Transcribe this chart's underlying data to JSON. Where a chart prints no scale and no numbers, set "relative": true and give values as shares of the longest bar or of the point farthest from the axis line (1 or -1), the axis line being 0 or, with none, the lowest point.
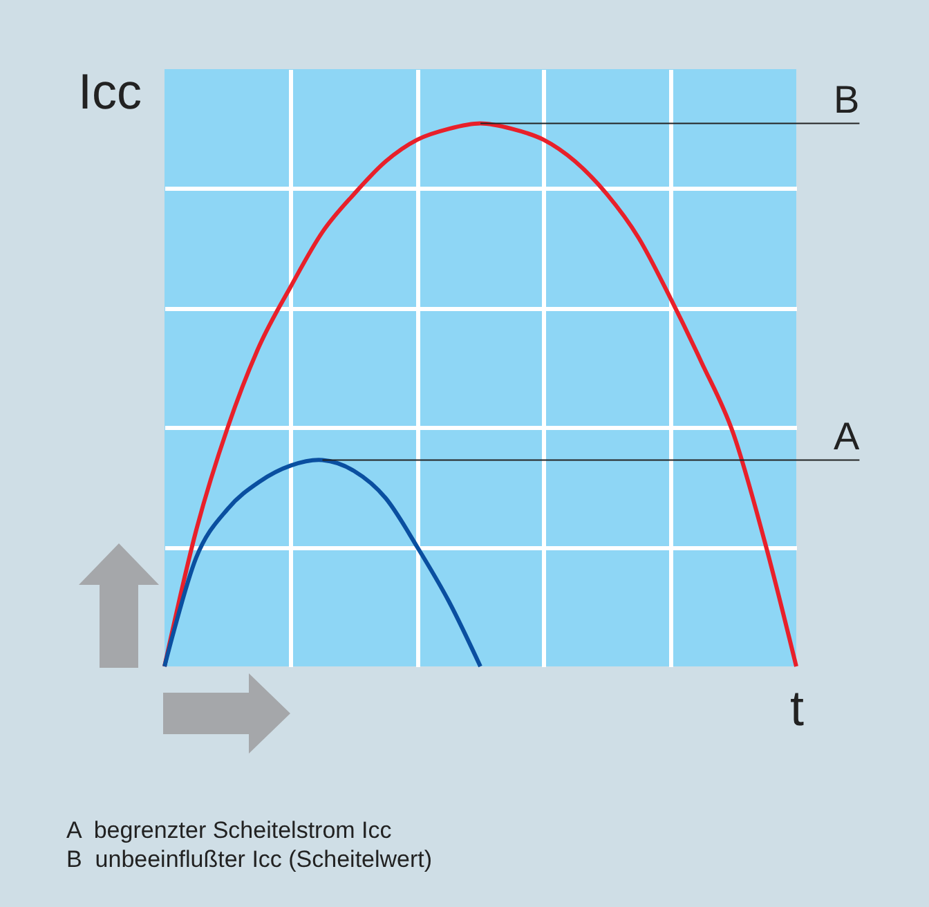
{
  "chart_data": {
    "type": "line",
    "relative": true,
    "xlabel": "t",
    "ylabel": "Icc",
    "grid": true,
    "legend": false,
    "marker": "none",
    "line_style": "solid",
    "categories": [
      null,
      null,
      null,
      null,
      null,
      null,
      null,
      null,
      null,
      null,
      null,
      null,
      null,
      null,
      null,
      null,
      null,
      null,
      null,
      null,
      null
    ],
    "series": [
      {
        "name": "B",
        "color": "#e8202a",
        "values": [
          0,
          0.25,
          0.44,
          0.59,
          0.7,
          0.8,
          0.87,
          0.93,
          0.97,
          0.99,
          1,
          0.99,
          0.97,
          0.93,
          0.87,
          0.79,
          0.68,
          0.56,
          0.43,
          0.23,
          0
        ]
      },
      {
        "name": "A",
        "color": "#0a4fa0",
        "values": [
          0,
          0.2,
          0.29,
          0.34,
          0.37,
          0.38,
          0.36,
          0.31,
          0.22,
          0.12,
          0,
          null,
          null,
          null,
          null,
          null,
          null,
          null,
          null,
          null,
          null
        ]
      }
    ],
    "annotations": [
      "A  begrenzter Scheitelstrom Icc",
      "B  unbeeinflußter Icc (Scheitelwert)"
    ]
  }
}
